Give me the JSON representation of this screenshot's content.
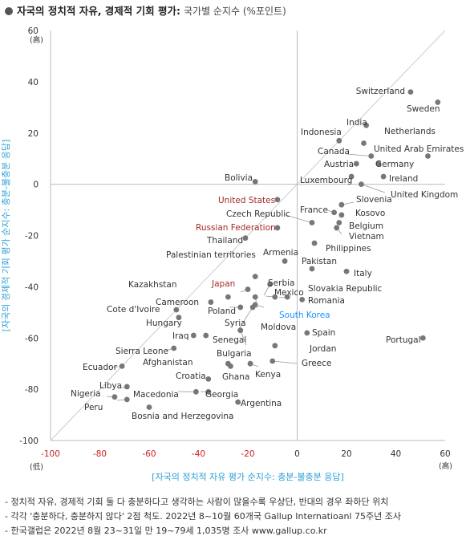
{
  "header": {
    "title": "자국의 정치적 자유, 경제적 기회 평가:",
    "subtitle": "국가별 순지수 (%포인트)"
  },
  "notes": [
    "- 정치적 자유, 경제적 기회 둘 다 충분하다고 생각하는 사람이 많을수록 우상단, 반대의 경우 좌하단 위치",
    "- 각각 '충분하다, 충분하지 않다' 2점 척도. 2022년 8~10월 60개국 Gallup Internatioanl 75주년 조사",
    "- 한국갤럽은 2022년 8월 23~31일 만 19~79세 1,035명 조사 www.gallup.co.kr"
  ],
  "chart_data": {
    "type": "scatter",
    "xlabel": "[자국의 정치적 자유 평가 순지수: 충분-불충분 응답]",
    "ylabel": "[자국의 경제적 기회 평가 순지수: 충분-불충분 응답]",
    "xlim": [
      -100,
      60
    ],
    "ylim": [
      -100,
      60
    ],
    "x_ticks": [
      "-100",
      "-80",
      "-60",
      "-40",
      "-20",
      "0",
      "20",
      "40",
      "60"
    ],
    "y_ticks": [
      "60",
      "40",
      "20",
      "0",
      "-20",
      "-40",
      "-60",
      "-80",
      "-100"
    ],
    "x_low_label": "(低)",
    "x_high_label": "(高)",
    "y_high_label": "(高)",
    "colors": {
      "marker": "#777777",
      "axis_x_label": "#2a9fd6",
      "axis_y_label": "#2a9fd6",
      "neg_tick": "#cc2222",
      "highlight_red": "#a52a2a",
      "highlight_blue": "#1e90ff",
      "diagonal": "#cccccc"
    },
    "points": [
      {
        "name": "Switzerland",
        "x": 46,
        "y": 36
      },
      {
        "name": "Sweden",
        "x": 57,
        "y": 32
      },
      {
        "name": "India",
        "x": 28,
        "y": 23
      },
      {
        "name": "Netherlands",
        "x": 27,
        "y": 16
      },
      {
        "name": "Indonesia",
        "x": 17,
        "y": 17
      },
      {
        "name": "United Arab Emirates",
        "x": 53,
        "y": 11
      },
      {
        "name": "Canada",
        "x": 30,
        "y": 11
      },
      {
        "name": "Germany",
        "x": 33,
        "y": 8
      },
      {
        "name": "Austria",
        "x": 24,
        "y": 8
      },
      {
        "name": "Ireland",
        "x": 35,
        "y": 3
      },
      {
        "name": "Luxembourg",
        "x": 22,
        "y": 3
      },
      {
        "name": "United Kingdom",
        "x": 26,
        "y": 0
      },
      {
        "name": "Bolivia",
        "x": -17,
        "y": 1
      },
      {
        "name": "United States",
        "x": -8,
        "y": -6,
        "highlight": "red"
      },
      {
        "name": "Slovenia",
        "x": 18,
        "y": -8
      },
      {
        "name": "Czech Republic",
        "x": 6,
        "y": -15
      },
      {
        "name": "France",
        "x": 15,
        "y": -11
      },
      {
        "name": "Kosovo",
        "x": 18,
        "y": -12
      },
      {
        "name": "Belgium",
        "x": 17,
        "y": -15
      },
      {
        "name": "Vietnam",
        "x": 16,
        "y": -17
      },
      {
        "name": "Russian Federation",
        "x": -8,
        "y": -17,
        "highlight": "red"
      },
      {
        "name": "Thailand",
        "x": -21,
        "y": -21
      },
      {
        "name": "Philippines",
        "x": 7,
        "y": -23
      },
      {
        "name": "Armenia",
        "x": -5,
        "y": -30
      },
      {
        "name": "Pakistan",
        "x": 6,
        "y": -33
      },
      {
        "name": "Italy",
        "x": 20,
        "y": -34
      },
      {
        "name": "Palestinian territories",
        "x": -17,
        "y": -36
      },
      {
        "name": "Mexico",
        "x": -11,
        "y": -39
      },
      {
        "name": "Serbia",
        "x": -9,
        "y": -44
      },
      {
        "name": "Slovakia Republic",
        "x": -4,
        "y": -44
      },
      {
        "name": "Romania",
        "x": 2,
        "y": -45
      },
      {
        "name": "Kazakhstan",
        "x": -28,
        "y": -44
      },
      {
        "name": "Japan",
        "x": -20,
        "y": -41,
        "highlight": "red"
      },
      {
        "name": "South Korea",
        "x": -17,
        "y": -47,
        "highlight": "blue"
      },
      {
        "name": "Cameroon",
        "x": -35,
        "y": -46
      },
      {
        "name": "Cote d'Ivoire",
        "x": -49,
        "y": -49
      },
      {
        "name": "Poland",
        "x": -23,
        "y": -48
      },
      {
        "name": "Hungary",
        "x": -48,
        "y": -52
      },
      {
        "name": "Syria",
        "x": -18,
        "y": -48
      },
      {
        "name": "Moldova",
        "x": -17,
        "y": -44
      },
      {
        "name": "Spain",
        "x": 4,
        "y": -58
      },
      {
        "name": "Iraq",
        "x": -42,
        "y": -59
      },
      {
        "name": "Senegal",
        "x": -37,
        "y": -59
      },
      {
        "name": "Bulgaria",
        "x": -23,
        "y": -57
      },
      {
        "name": "Portugal",
        "x": 51,
        "y": -60
      },
      {
        "name": "Jordan",
        "x": -9,
        "y": -63
      },
      {
        "name": "Sierra Leone",
        "x": -50,
        "y": -64
      },
      {
        "name": "Greece",
        "x": -10,
        "y": -69
      },
      {
        "name": "Afghanistan",
        "x": -28,
        "y": -70
      },
      {
        "name": "Kenya",
        "x": -19,
        "y": -70
      },
      {
        "name": "Ecuador",
        "x": -71,
        "y": -71
      },
      {
        "name": "Croatia",
        "x": -36,
        "y": -76
      },
      {
        "name": "Ghana",
        "x": -27,
        "y": -71
      },
      {
        "name": "Libya",
        "x": -69,
        "y": -79
      },
      {
        "name": "Nigeria",
        "x": -74,
        "y": -83
      },
      {
        "name": "Macedonia",
        "x": -41,
        "y": -81
      },
      {
        "name": "Georgia",
        "x": -36,
        "y": -81
      },
      {
        "name": "Peru",
        "x": -69,
        "y": -84
      },
      {
        "name": "Argentina",
        "x": -24,
        "y": -85
      },
      {
        "name": "Bosnia and Herzegovina",
        "x": -60,
        "y": -87
      }
    ]
  }
}
